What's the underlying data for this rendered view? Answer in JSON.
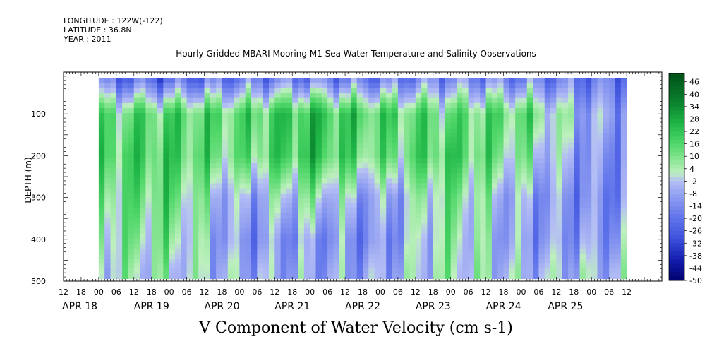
{
  "header": {
    "longitude": "LONGITUDE : 122W(-122)",
    "latitude": "LATITUDE : 36.8N",
    "year": "YEAR : 2011"
  },
  "title": "Hourly Gridded MBARI Mooring M1 Sea Water Temperature and Salinity Observations",
  "footer": "V Component of Water Velocity (cm s-1)",
  "chart_data": {
    "type": "heatmap",
    "title": "Hourly Gridded MBARI Mooring M1 Sea Water Temperature and Salinity Observations",
    "xlabel": "",
    "ylabel": "DEPTH (m)",
    "x_hour_ticks": [
      "12",
      "18",
      "00",
      "06",
      "12",
      "18",
      "00",
      "06",
      "12",
      "18",
      "00",
      "06",
      "12",
      "18",
      "00",
      "06",
      "12",
      "18",
      "00",
      "06",
      "12",
      "18",
      "00",
      "06",
      "12",
      "18",
      "00",
      "06",
      "12",
      "18",
      "00",
      "06",
      "12"
    ],
    "x_date_labels": [
      "APR 18",
      "APR 19",
      "APR 20",
      "APR 21",
      "APR 22",
      "APR 23",
      "APR 24",
      "APR 25"
    ],
    "x_range_hours": [
      -12,
      192
    ],
    "y_ticks": [
      100,
      200,
      300,
      400,
      500
    ],
    "y_range": [
      500,
      0
    ],
    "y_reversed": true,
    "colorbar_labels": [
      "46",
      "40",
      "34",
      "28",
      "22",
      "16",
      "10",
      "4",
      "-2",
      "-8",
      "-14",
      "-20",
      "-26",
      "-32",
      "-38",
      "-44",
      "-50"
    ],
    "colorbar_range": [
      -50,
      50
    ],
    "colors": {
      "positive": "#2ecc55",
      "neutral": "#b4f0b4",
      "negative": "#7080ee",
      "strong_negative": "#2030c0",
      "missing": "#ffffff"
    },
    "cross_sections_hour_depth_value": [
      {
        "x": 0,
        "values": [
          [
            20,
            -18
          ],
          [
            100,
            12
          ],
          [
            200,
            16
          ],
          [
            300,
            10
          ],
          [
            400,
            6
          ],
          [
            480,
            2
          ]
        ]
      },
      {
        "x": 24,
        "values": [
          [
            20,
            -20
          ],
          [
            100,
            16
          ],
          [
            200,
            18
          ],
          [
            300,
            14
          ],
          [
            400,
            8
          ],
          [
            480,
            2
          ]
        ]
      },
      {
        "x": 48,
        "values": [
          [
            20,
            -16
          ],
          [
            100,
            14
          ],
          [
            200,
            10
          ],
          [
            300,
            -8
          ],
          [
            400,
            -12
          ],
          [
            480,
            -6
          ]
        ]
      },
      {
        "x": 72,
        "values": [
          [
            20,
            -14
          ],
          [
            100,
            22
          ],
          [
            200,
            22
          ],
          [
            300,
            4
          ],
          [
            400,
            -10
          ],
          [
            480,
            -8
          ]
        ]
      },
      {
        "x": 96,
        "values": [
          [
            20,
            -16
          ],
          [
            100,
            16
          ],
          [
            200,
            10
          ],
          [
            300,
            -10
          ],
          [
            400,
            -14
          ],
          [
            480,
            -8
          ]
        ]
      },
      {
        "x": 120,
        "values": [
          [
            20,
            -12
          ],
          [
            100,
            12
          ],
          [
            200,
            18
          ],
          [
            300,
            10
          ],
          [
            400,
            6
          ],
          [
            480,
            4
          ]
        ]
      },
      {
        "x": 144,
        "values": [
          [
            20,
            -14
          ],
          [
            100,
            14
          ],
          [
            200,
            6
          ],
          [
            300,
            -8
          ],
          [
            400,
            -10
          ],
          [
            480,
            -4
          ]
        ]
      },
      {
        "x": 168,
        "values": [
          [
            20,
            -18
          ],
          [
            100,
            -8
          ],
          [
            200,
            -12
          ],
          [
            300,
            -14
          ],
          [
            400,
            -10
          ],
          [
            480,
            -4
          ]
        ]
      }
    ]
  }
}
